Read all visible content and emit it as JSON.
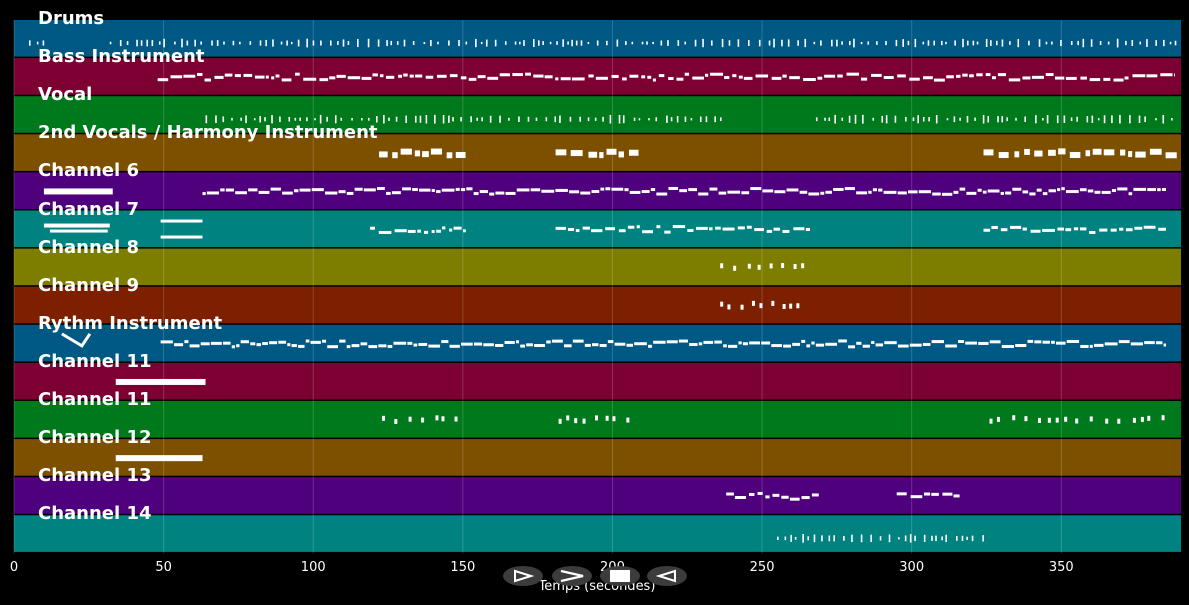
{
  "timeline": {
    "tracks": [
      {
        "label": "Drums",
        "color": "#005884"
      },
      {
        "label": "Bass Instrument",
        "color": "#7d0033"
      },
      {
        "label": "Vocal",
        "color": "#00781c"
      },
      {
        "label": "2nd Vocals / Harmony Instrument",
        "color": "#7d5000"
      },
      {
        "label": "Channel 6",
        "color": "#4f007d"
      },
      {
        "label": "Channel 7",
        "color": "#008280"
      },
      {
        "label": "Channel 8",
        "color": "#7d7d00"
      },
      {
        "label": "Channel 9",
        "color": "#7d2000"
      },
      {
        "label": "Rythm Instrument",
        "color": "#005884"
      },
      {
        "label": "Channel 11",
        "color": "#7d0033"
      },
      {
        "label": "Channel 11",
        "color": "#00781c"
      },
      {
        "label": "Channel 12",
        "color": "#7d5000"
      },
      {
        "label": "Channel 13",
        "color": "#4f007d"
      },
      {
        "label": "Channel 14",
        "color": "#008280"
      }
    ],
    "x_axis": {
      "ticks": [
        "0",
        "50",
        "100",
        "150",
        "200",
        "250",
        "300",
        "350"
      ],
      "title": "Temps (secondes)",
      "max_seconds": 390
    },
    "note_segments": [
      [
        [
          5,
          10,
          "dots"
        ],
        [
          32,
          388,
          "dots"
        ]
      ],
      [
        [
          48,
          388,
          "line"
        ]
      ],
      [
        [
          64,
          237,
          "dots"
        ],
        [
          268,
          388,
          "dots"
        ]
      ],
      [
        [
          122,
          151,
          "bars"
        ],
        [
          181,
          210,
          "bars"
        ],
        [
          324,
          388,
          "bars"
        ]
      ],
      [
        [
          10,
          33,
          "block"
        ],
        [
          63,
          385,
          "dense"
        ]
      ],
      [
        [
          10,
          32,
          "short"
        ],
        [
          49,
          63,
          "pair"
        ],
        [
          119,
          151,
          "line"
        ],
        [
          181,
          266,
          "line"
        ],
        [
          324,
          385,
          "line"
        ]
      ],
      [
        [
          236,
          264,
          "sparse"
        ]
      ],
      [
        [
          236,
          264,
          "sparse"
        ]
      ],
      [
        [
          16,
          30,
          "v"
        ],
        [
          49,
          385,
          "dense"
        ]
      ],
      [
        [
          34,
          64,
          "block"
        ]
      ],
      [
        [
          123,
          149,
          "sparse"
        ],
        [
          182,
          209,
          "sparse"
        ],
        [
          326,
          384,
          "sparse"
        ]
      ],
      [
        [
          34,
          63,
          "block"
        ]
      ],
      [
        [
          238,
          269,
          "line"
        ],
        [
          295,
          316,
          "line"
        ]
      ],
      [
        [
          255,
          325,
          "dots"
        ]
      ]
    ]
  },
  "playback": {
    "play_icon": "play-icon",
    "forward_icon": "fast-forward-icon",
    "stop_icon": "stop-icon",
    "rewind_icon": "rewind-icon"
  }
}
